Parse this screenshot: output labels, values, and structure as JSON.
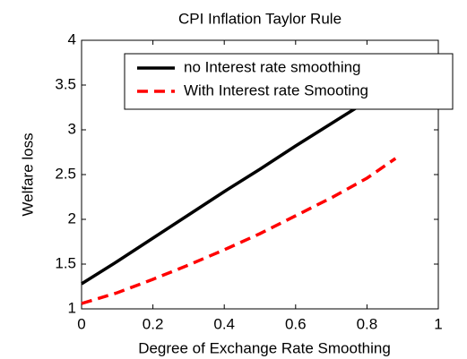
{
  "chart_data": {
    "type": "line",
    "title": "CPI Inflation Taylor Rule",
    "x_label": "Degree of Exchange Rate Smoothing",
    "y_label": "Welfare loss",
    "x": [
      0,
      0.1,
      0.2,
      0.3,
      0.4,
      0.5,
      0.6,
      0.7,
      0.8,
      0.88
    ],
    "series": [
      {
        "name": "no Interest rate smoothing",
        "color": "#000000",
        "dash": "solid",
        "values": [
          1.28,
          1.53,
          1.79,
          2.05,
          2.31,
          2.56,
          2.82,
          3.07,
          3.32,
          3.52
        ]
      },
      {
        "name": "With Interest rate Smooting",
        "color": "#ff0000",
        "dash": "dashed",
        "values": [
          1.06,
          1.18,
          1.33,
          1.49,
          1.66,
          1.84,
          2.04,
          2.24,
          2.46,
          2.68
        ]
      }
    ],
    "xlim": [
      0,
      1
    ],
    "xticks": [
      0,
      0.2,
      0.4,
      0.6,
      0.8,
      1
    ],
    "ylim": [
      1,
      4
    ],
    "yticks": [
      1,
      1.5,
      2,
      2.5,
      3,
      3.5,
      4
    ],
    "legend": "top-right"
  }
}
